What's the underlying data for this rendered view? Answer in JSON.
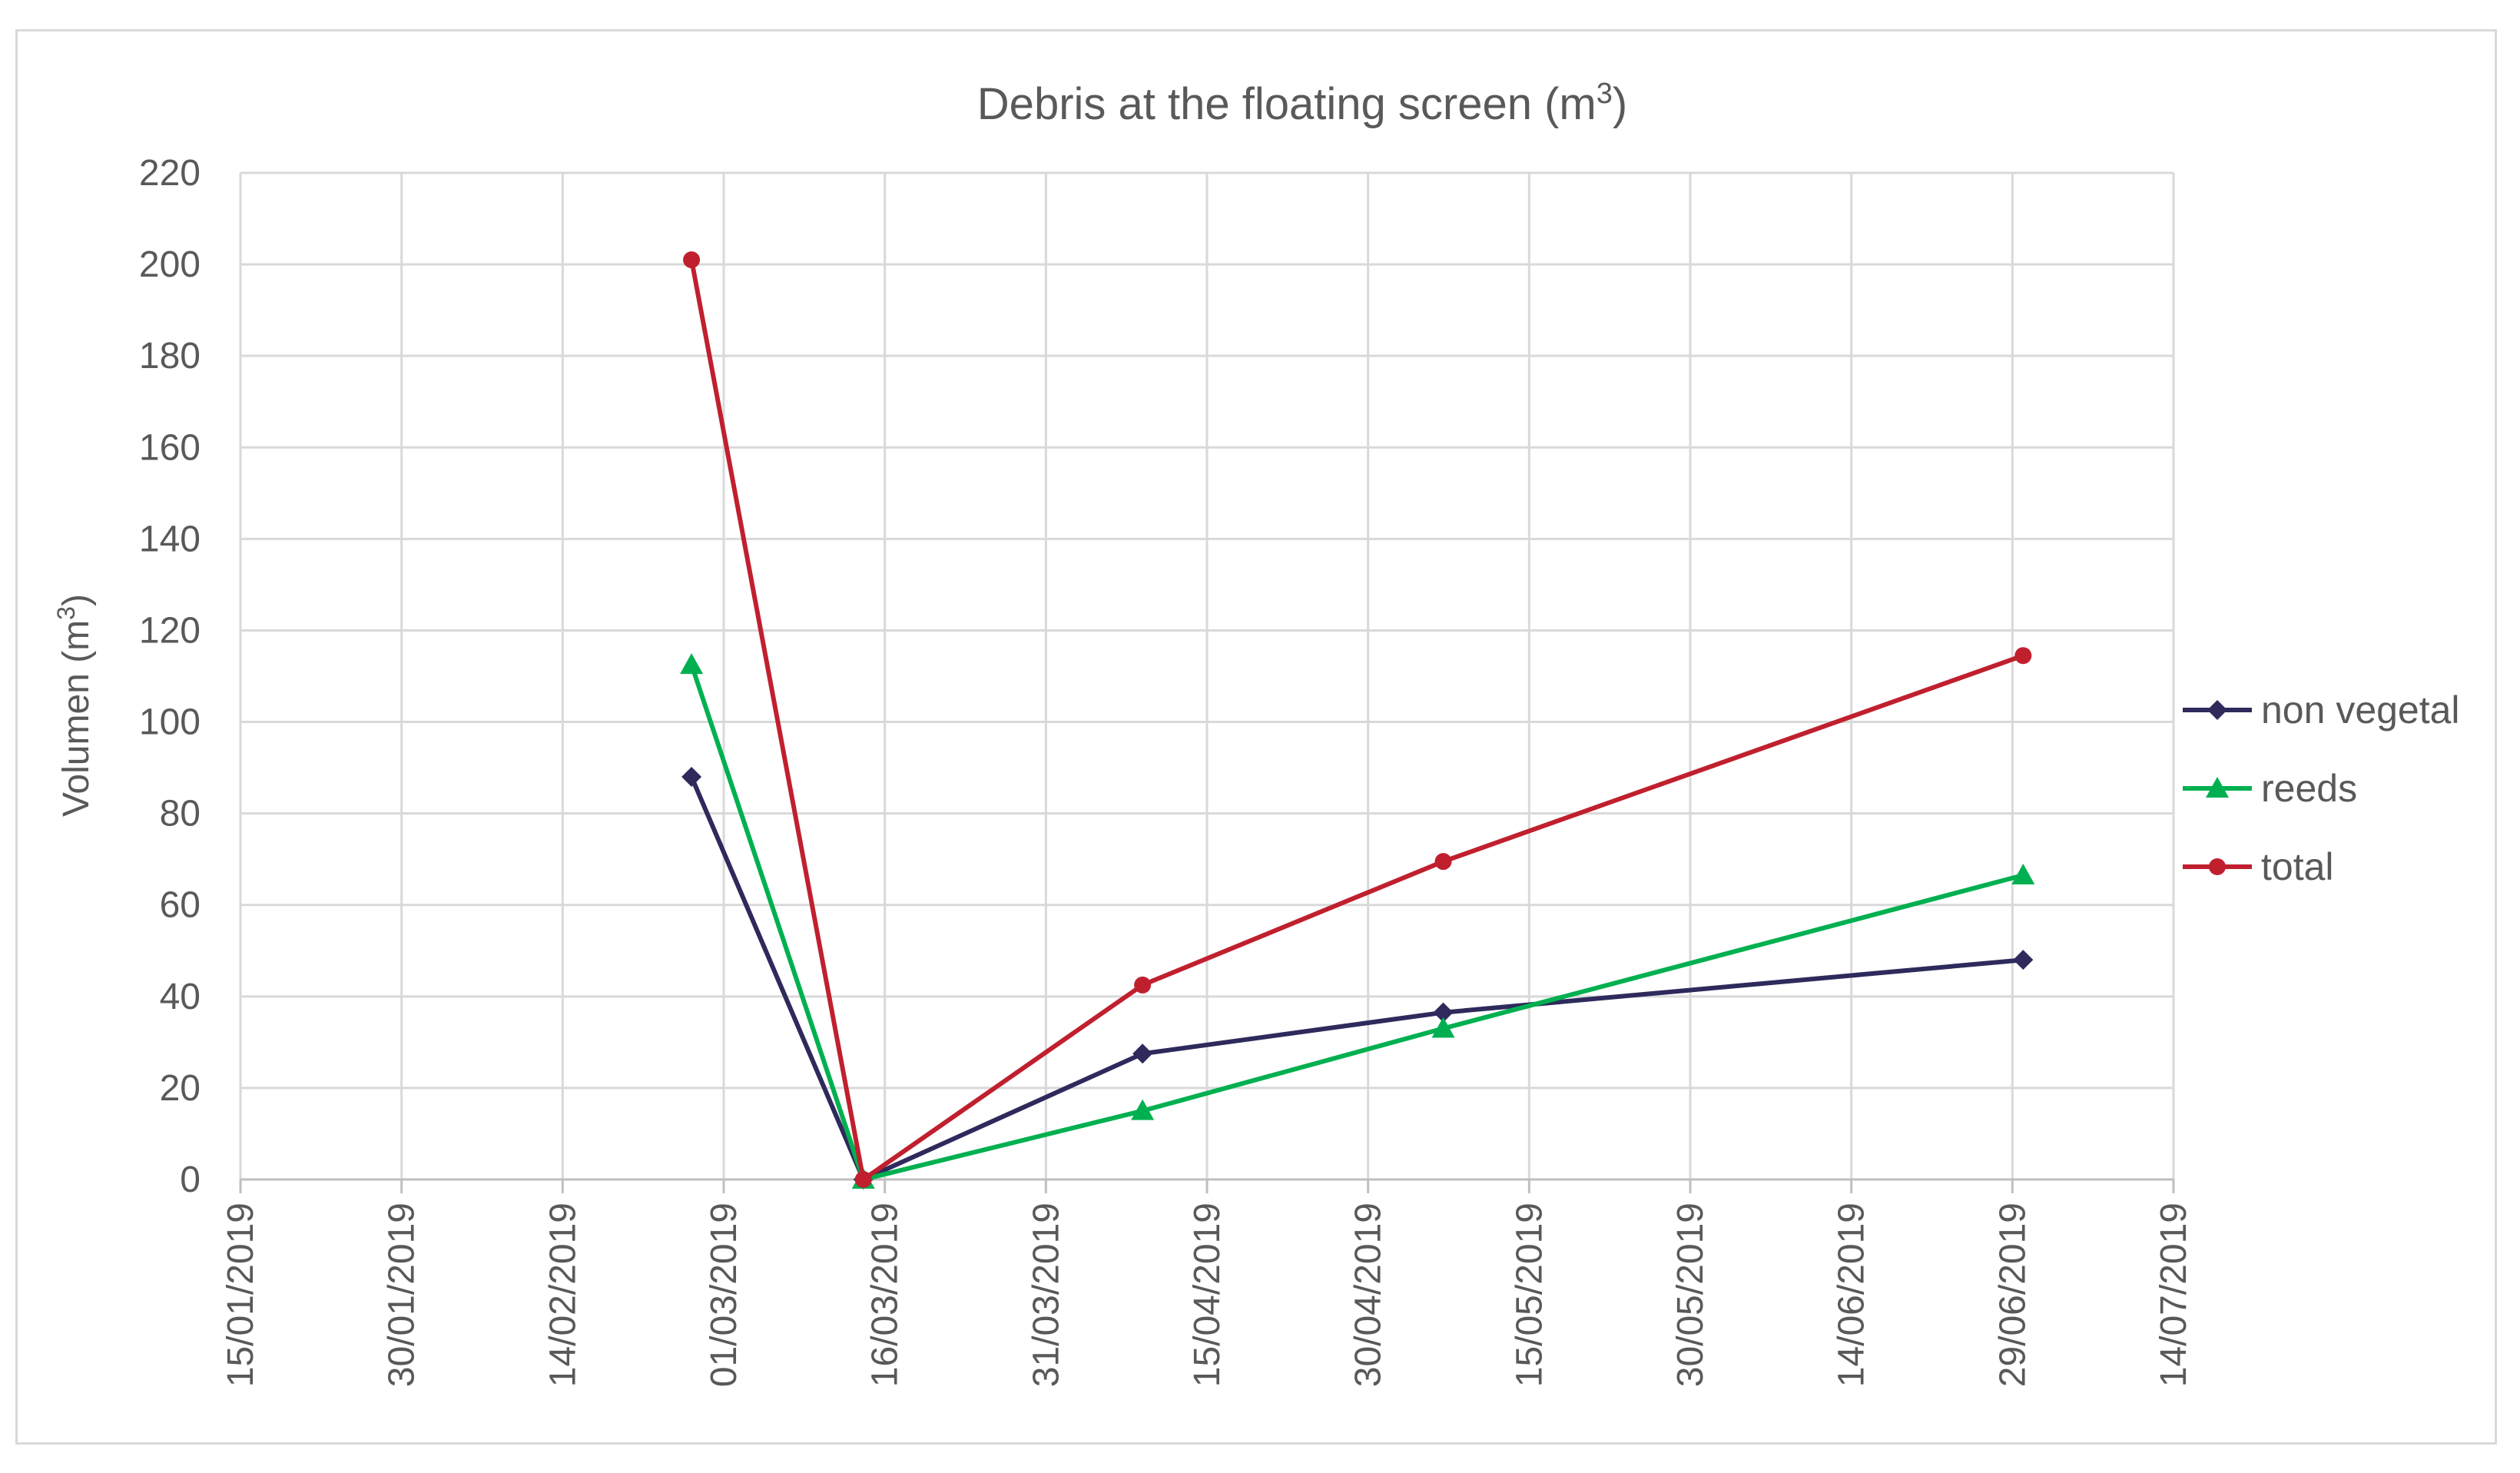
{
  "chart_data": {
    "type": "line",
    "title": "Debris at the floating screen (m",
    "title_sup": "3",
    "title_end": ")",
    "xlabel": "",
    "ylabel": "Volumen (m",
    "ylabel_sup": "3",
    "ylabel_end": ")",
    "ylim": [
      0,
      220
    ],
    "y_ticks": [
      "0",
      "20",
      "40",
      "60",
      "80",
      "100",
      "120",
      "140",
      "160",
      "180",
      "200",
      "220"
    ],
    "x_ticks": [
      "15/01/2019",
      "30/01/2019",
      "14/02/2019",
      "01/03/2019",
      "16/03/2019",
      "31/03/2019",
      "15/04/2019",
      "30/04/2019",
      "15/05/2019",
      "30/05/2019",
      "14/06/2019",
      "29/06/2019",
      "14/07/2019"
    ],
    "xlim": [
      "2019-01-15",
      "2019-07-14"
    ],
    "grid": true,
    "legend_position": "right",
    "x": [
      "2019-02-26",
      "2019-03-14",
      "2019-04-09",
      "2019-05-07",
      "2019-06-30"
    ],
    "series": [
      {
        "name": "non vegetal",
        "color": "#2e2a5c",
        "marker": "diamond",
        "values": [
          88,
          0,
          27.5,
          36.5,
          48
        ]
      },
      {
        "name": "reeds",
        "color": "#00b050",
        "marker": "triangle",
        "values": [
          112.5,
          0,
          15,
          33,
          66.5
        ]
      },
      {
        "name": "total",
        "color": "#c0202e",
        "marker": "circle",
        "values": [
          201,
          0,
          42.5,
          69.5,
          114.5
        ]
      }
    ]
  }
}
